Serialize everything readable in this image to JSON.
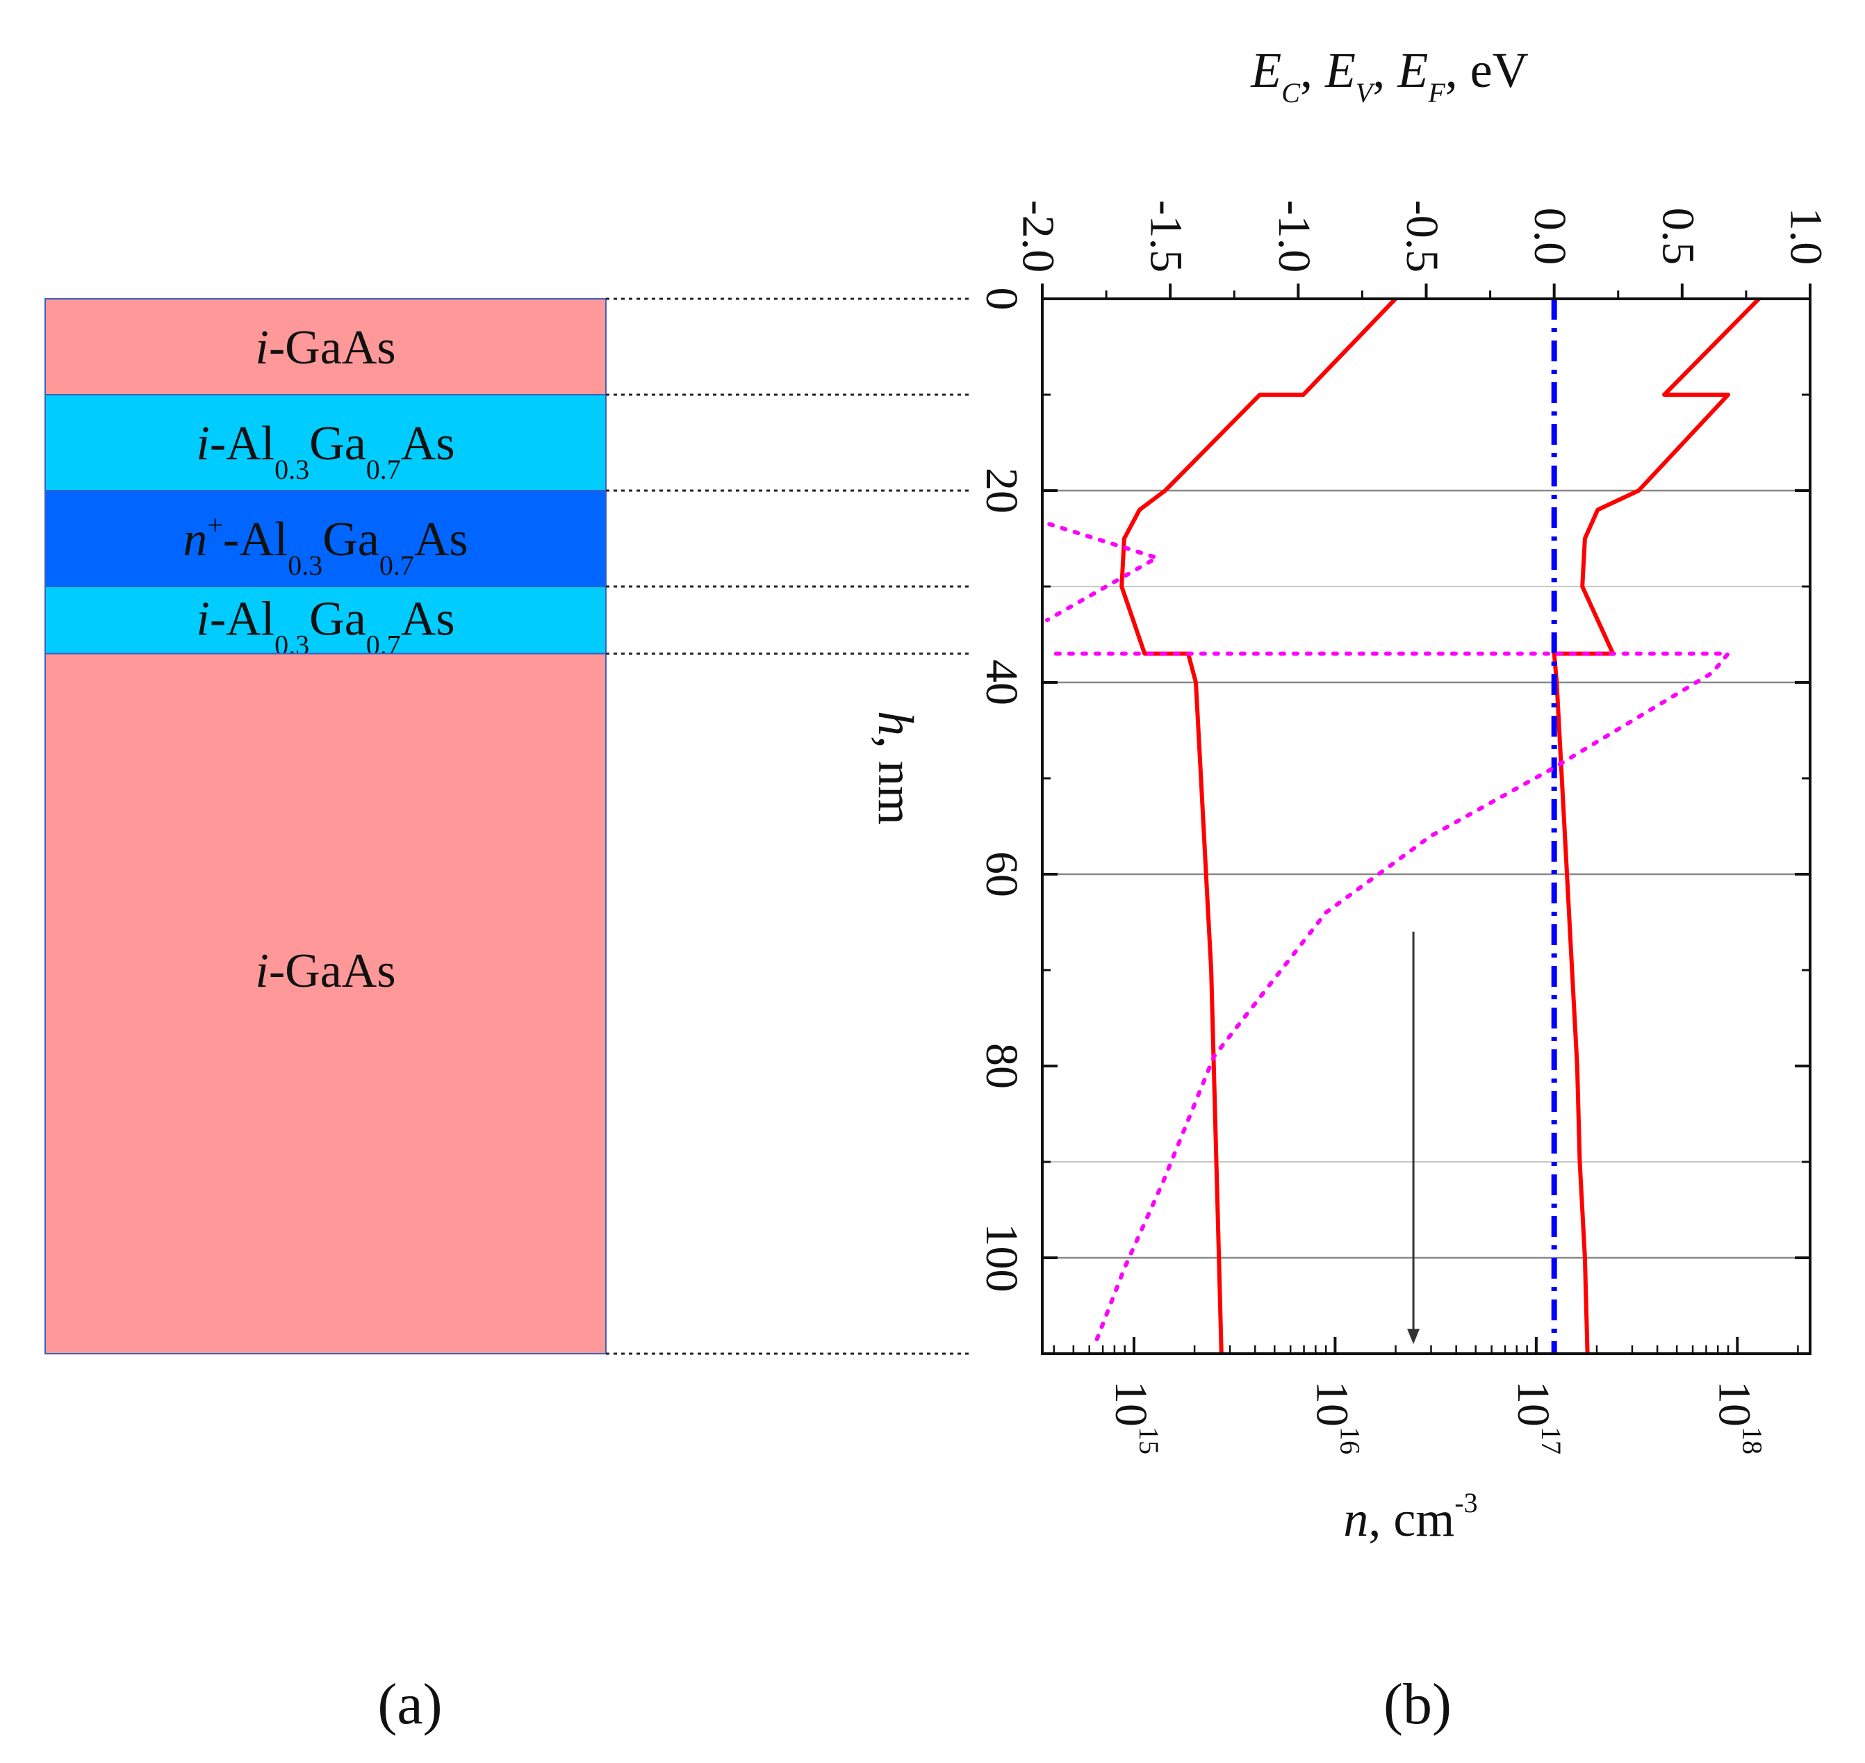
{
  "panel_a": {
    "label": "(a)",
    "layers": [
      {
        "material": "GaAs",
        "prefix": "i",
        "alloy": false,
        "thickness_nm": 10,
        "color": "#ff9999",
        "label_depth_nm": 5
      },
      {
        "material": "Al0.3Ga0.7As",
        "prefix": "i",
        "alloy": true,
        "al": "0.3",
        "ga": "0.7",
        "thickness_nm": 10,
        "color": "#00ccff",
        "label_depth_nm": 15
      },
      {
        "material": "Al0.3Ga0.7As",
        "prefix": "n",
        "prefix_sup": "+",
        "alloy": true,
        "al": "0.3",
        "ga": "0.7",
        "thickness_nm": 10,
        "color": "#0066ff",
        "label_depth_nm": 25
      },
      {
        "material": "Al0.3Ga0.7As",
        "prefix": "i",
        "alloy": true,
        "al": "0.3",
        "ga": "0.7",
        "thickness_nm": 7,
        "color": "#00ccff",
        "label_depth_nm": 33.3
      },
      {
        "material": "GaAs",
        "prefix": "i",
        "alloy": false,
        "thickness_nm": 73,
        "color": "#ff9999",
        "label_depth_nm": 70
      }
    ],
    "text": {
      "gaas": "-GaAs",
      "al": "-Al",
      "ga": "Ga",
      "as": "As"
    }
  },
  "chart_data": {
    "type": "line",
    "label": "(b)",
    "orientation": "depth-vertical",
    "depth_axis": {
      "label_var": "h",
      "label_unit": ", nm",
      "range": [
        0,
        110
      ],
      "ticks": [
        0,
        20,
        40,
        60,
        80,
        100
      ],
      "tick_labels": [
        "0",
        "20",
        "40",
        "60",
        "80",
        "100"
      ],
      "grid": [
        20,
        30,
        40,
        60,
        90,
        100
      ]
    },
    "energy_axis": {
      "position": "top",
      "title_parts": [
        "E",
        "C",
        ", ",
        "E",
        "V",
        ", ",
        "E",
        "F",
        ", eV"
      ],
      "range": [
        -2.0,
        1.0
      ],
      "ticks": [
        -2.0,
        -1.5,
        -1.0,
        -0.5,
        0.0,
        0.5,
        1.0
      ],
      "tick_labels": [
        "-2.0",
        "-1.5",
        "-1.0",
        "-0.5",
        "0.0",
        "0.5",
        "1.0"
      ]
    },
    "density_axis": {
      "position": "bottom",
      "scale": "log",
      "title_var": "n",
      "title_unit": ", cm",
      "title_exp": "-3",
      "range": [
        350000000000000,
        2300000000000000000
      ],
      "ticks": [
        1000000000000000.0,
        1e+16,
        1e+17,
        1e+18
      ],
      "tick_base": "10",
      "tick_exps": [
        "15",
        "16",
        "17",
        "18"
      ]
    },
    "series": [
      {
        "kind": "valence-band",
        "color": "#ff0000",
        "style": "solid",
        "points": [
          [
            -0.62,
            0
          ],
          [
            -0.98,
            10
          ],
          [
            -1.15,
            10
          ],
          [
            -1.52,
            20
          ],
          [
            -1.62,
            22
          ],
          [
            -1.68,
            25
          ],
          [
            -1.69,
            30
          ],
          [
            -1.6,
            37
          ],
          [
            -1.43,
            37
          ],
          [
            -1.4,
            40
          ],
          [
            -1.38,
            50
          ],
          [
            -1.36,
            60
          ],
          [
            -1.34,
            70
          ],
          [
            -1.33,
            80
          ],
          [
            -1.32,
            90
          ],
          [
            -1.31,
            100
          ],
          [
            -1.3,
            110
          ]
        ]
      },
      {
        "kind": "conduction-band",
        "color": "#ff0000",
        "style": "solid",
        "points": [
          [
            0.8,
            0
          ],
          [
            0.43,
            10
          ],
          [
            0.68,
            10
          ],
          [
            0.33,
            20
          ],
          [
            0.17,
            22
          ],
          [
            0.12,
            25
          ],
          [
            0.11,
            30
          ],
          [
            0.23,
            37
          ],
          [
            0.0,
            37
          ],
          [
            0.01,
            40
          ],
          [
            0.03,
            50
          ],
          [
            0.05,
            60
          ],
          [
            0.07,
            70
          ],
          [
            0.09,
            80
          ],
          [
            0.1,
            90
          ],
          [
            0.12,
            100
          ],
          [
            0.13,
            110
          ]
        ]
      },
      {
        "kind": "fermi-level",
        "color": "#0000ff",
        "style": "dash-dot",
        "points": [
          [
            0.0,
            0
          ],
          [
            0.0,
            110
          ]
        ]
      },
      {
        "kind": "electron-density",
        "color": "#ff00ff",
        "style": "dotted",
        "x_unit": "cm-3",
        "points": [
          [
            380000000000000,
            23.5
          ],
          [
            1300000000000000,
            27
          ],
          [
            370000000000000,
            33.5
          ]
        ]
      },
      {
        "kind": "electron-density",
        "color": "#ff00ff",
        "style": "dotted",
        "x_unit": "cm-3",
        "points": [
          [
            410000000000000,
            37
          ],
          [
            900000000000000000,
            37
          ],
          [
            750000000000000000,
            39
          ],
          [
            300000000000000000,
            44
          ],
          [
            120000000000000000,
            49
          ],
          [
            30000000000000000,
            56
          ],
          [
            9000000000000000,
            64
          ],
          [
            2500000000000000,
            79
          ],
          [
            1400000000000000,
            92
          ],
          [
            900000000000000,
            101
          ],
          [
            640000000000000,
            109
          ]
        ]
      }
    ],
    "annotation_arrow": {
      "color": "#333333",
      "x_energy": -0.55,
      "from_depth": 66,
      "to_depth": 109
    }
  }
}
